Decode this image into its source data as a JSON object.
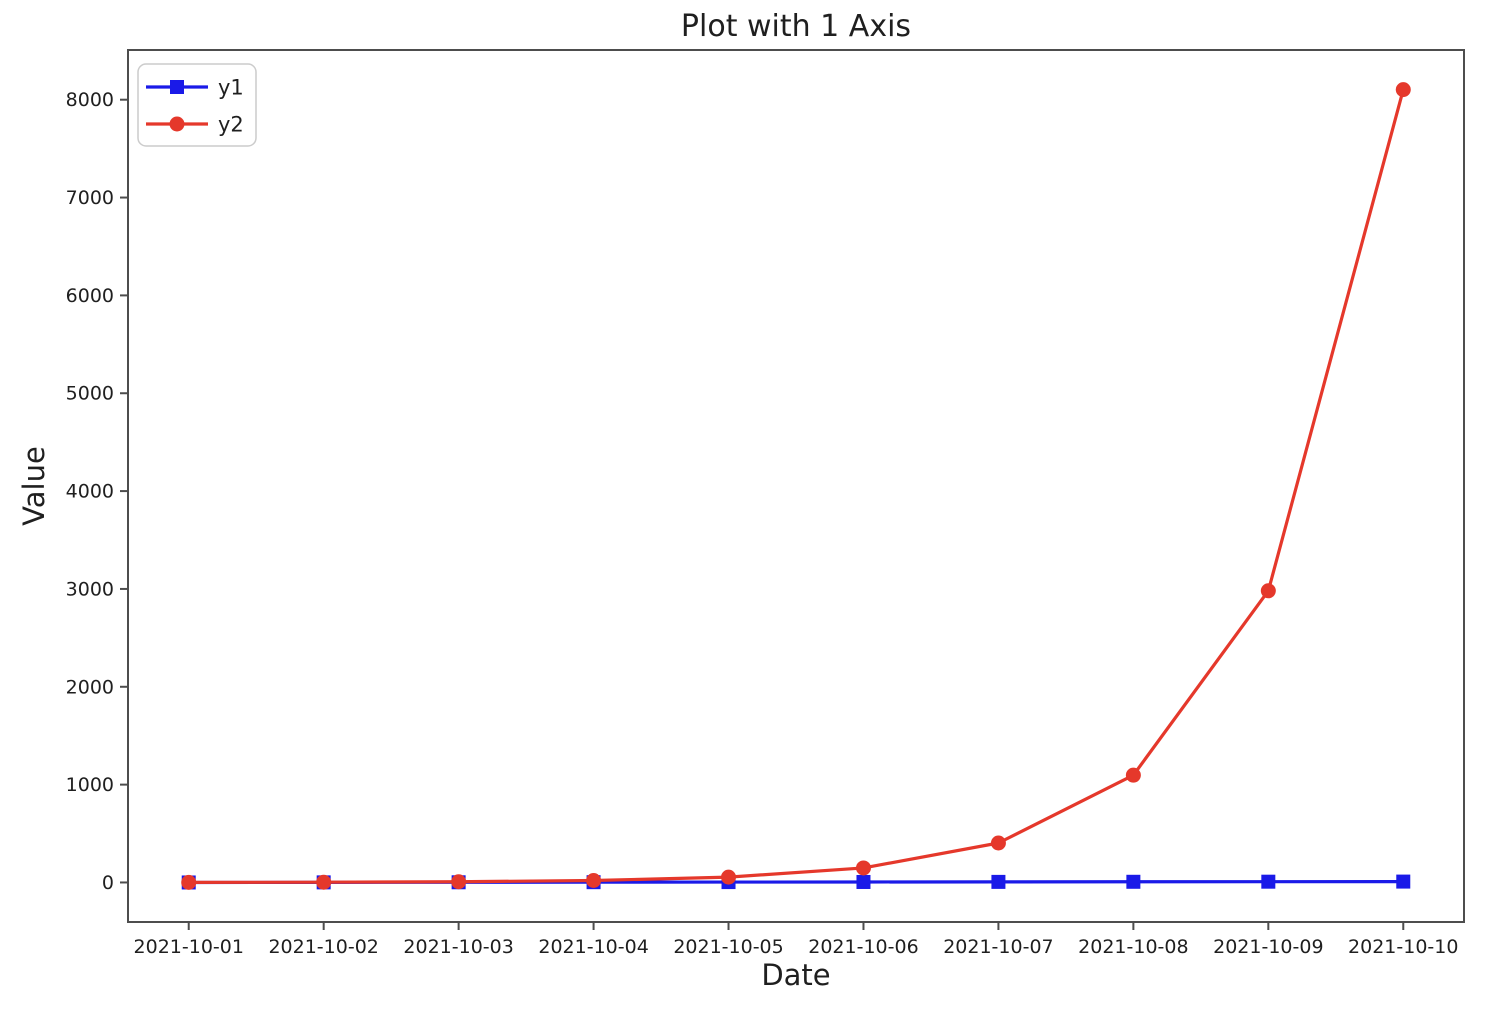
{
  "chart_data": {
    "type": "line",
    "title": "Plot with 1 Axis",
    "xlabel": "Date",
    "ylabel": "Value",
    "x_tick_labels": [
      "2021-10-01",
      "2021-10-02",
      "2021-10-03",
      "2021-10-04",
      "2021-10-05",
      "2021-10-06",
      "2021-10-07",
      "2021-10-08",
      "2021-10-09",
      "2021-10-10"
    ],
    "y_ticks": [
      0,
      1000,
      2000,
      3000,
      4000,
      5000,
      6000,
      7000,
      8000
    ],
    "xlim": [
      -0.45,
      9.45
    ],
    "ylim": [
      -404,
      8508
    ],
    "grid": false,
    "legend_position": "upper left",
    "series": [
      {
        "name": "y1",
        "color": "#1a1ae8",
        "marker": "square",
        "values": [
          0,
          1,
          2,
          3,
          4,
          5,
          6,
          7,
          8,
          9
        ]
      },
      {
        "name": "y2",
        "color": "#e5382b",
        "marker": "circle",
        "values": [
          1,
          2.72,
          7.39,
          20.09,
          54.6,
          148.41,
          403.43,
          1096.63,
          2980.96,
          8103.08
        ]
      }
    ],
    "colors": {
      "axis": "#4d4d4d",
      "text": "#1f1f1f",
      "legend_border": "#cccccc",
      "background": "#ffffff"
    }
  }
}
